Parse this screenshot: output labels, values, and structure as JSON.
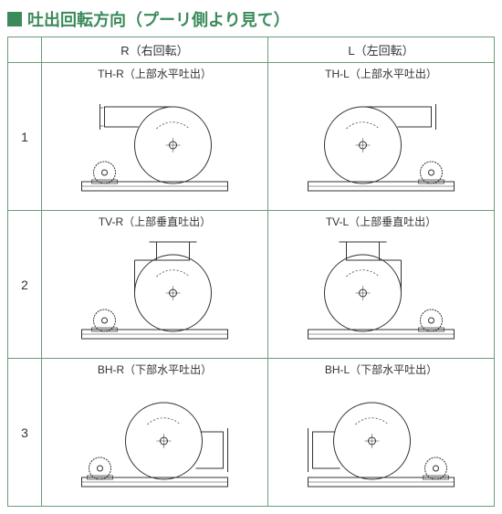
{
  "title": {
    "square_color": "#3a8a5a",
    "text": "吐出回転方向（プーリ側より見て）",
    "text_color": "#3a8a5a"
  },
  "table": {
    "border_color": "#6b9b7a",
    "header": {
      "r": "R（右回転）",
      "l": "L（左回転）"
    },
    "rows": [
      {
        "num": "1",
        "r_label": "TH-R（上部水平吐出）",
        "l_label": "TH-L（上部水平吐出）",
        "type": "th"
      },
      {
        "num": "2",
        "r_label": "TV-R（上部垂直吐出）",
        "l_label": "TV-L（上部垂直吐出）",
        "type": "tv"
      },
      {
        "num": "3",
        "r_label": "BH-R（下部水平吐出）",
        "l_label": "BH-L（下部水平吐出）",
        "type": "bh"
      }
    ]
  },
  "diagram_style": {
    "stroke": "#333333",
    "stroke_width": 1,
    "fill": "#ffffff"
  }
}
